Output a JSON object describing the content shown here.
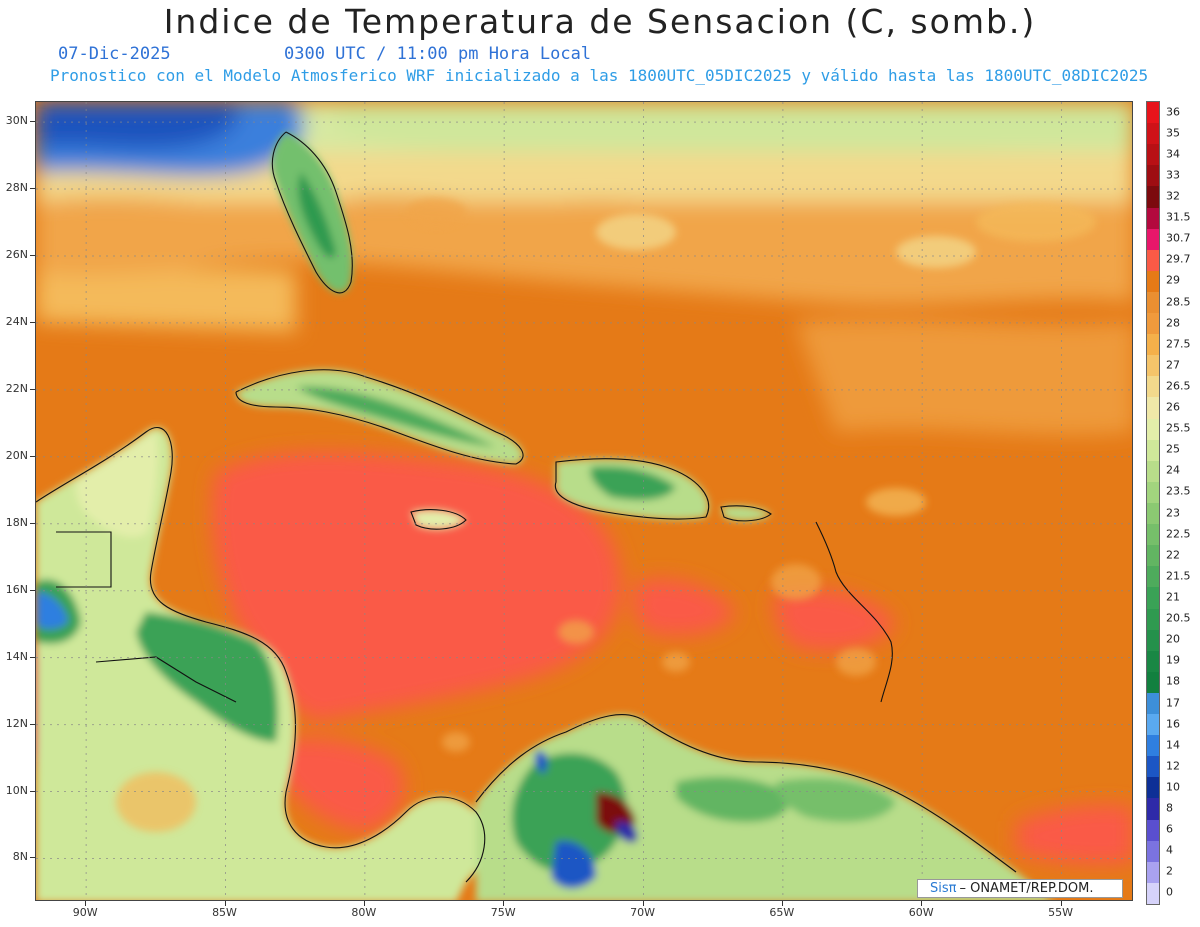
{
  "header": {
    "title": "Indice de Temperatura de Sensacion (C, somb.)",
    "date": "07-Dic-2025",
    "time": "0300 UTC / 11:00 pm Hora Local",
    "subtitle": "Pronostico con el Modelo Atmosferico WRF inicializado a las 1800UTC_05DIC2025 y válido hasta las  1800UTC_08DIC2025"
  },
  "axes": {
    "lat_labels": [
      "30N",
      "28N",
      "26N",
      "24N",
      "22N",
      "20N",
      "18N",
      "16N",
      "14N",
      "12N",
      "10N",
      "8N"
    ],
    "lon_labels": [
      "90W",
      "85W",
      "80W",
      "75W",
      "70W",
      "65W",
      "60W",
      "55W"
    ],
    "lat_values": [
      30,
      28,
      26,
      24,
      22,
      20,
      18,
      16,
      14,
      12,
      10,
      8
    ],
    "lon_values": [
      -90,
      -85,
      -80,
      -75,
      -70,
      -65,
      -60,
      -55
    ],
    "lat_range": [
      6.7,
      30.6
    ],
    "lon_range": [
      -91.8,
      -52.4
    ]
  },
  "colorbar": {
    "labels": [
      "36",
      "35",
      "34",
      "33",
      "32",
      "31.5",
      "30.7",
      "29.7",
      "29",
      "28.5",
      "28",
      "27.5",
      "27",
      "26.5",
      "26",
      "25.5",
      "25",
      "24",
      "23.5",
      "23",
      "22.5",
      "22",
      "21.5",
      "21",
      "20.5",
      "20",
      "19",
      "18",
      "17",
      "16",
      "14",
      "12",
      "10",
      "8",
      "6",
      "4",
      "2",
      "0"
    ],
    "colors": [
      "#e8141b",
      "#cf1218",
      "#b81015",
      "#9e0d12",
      "#7c0a0e",
      "#b3093e",
      "#e8166a",
      "#fa5a46",
      "#e67a16",
      "#ea8f31",
      "#f09a3c",
      "#f5b04a",
      "#f5c46a",
      "#f3d98c",
      "#f0e8a8",
      "#e3eeaa",
      "#cfe89a",
      "#b8dd8a",
      "#a2d47e",
      "#8bc972",
      "#76bf6a",
      "#62b562",
      "#4eab5c",
      "#3aa256",
      "#2f9a50",
      "#24914b",
      "#198744",
      "#12803f",
      "#3d8fd9",
      "#5aa9f0",
      "#2f7fe0",
      "#1c56c4",
      "#0d2f96",
      "#2e2aa8",
      "#5a4fcf",
      "#7b73e0",
      "#a9a2f0",
      "#d6d3fa"
    ]
  },
  "regions": {
    "labels": []
  },
  "credit": {
    "sis": "Sisπ",
    "org": "– ONAMET/REP.DOM."
  }
}
